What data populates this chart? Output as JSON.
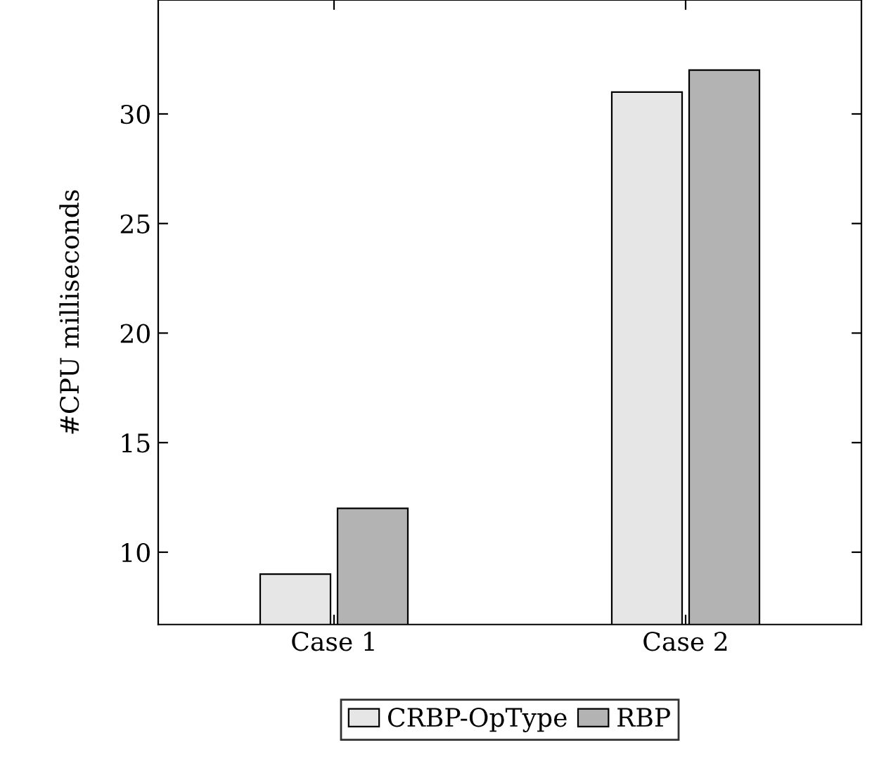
{
  "chart_data": {
    "type": "bar",
    "ylabel": "#CPU milliseconds",
    "categories": [
      "Case 1",
      "Case 2"
    ],
    "series": [
      {
        "name": "CRBP-OpType",
        "color": "#e6e6e6",
        "values": [
          9,
          31
        ]
      },
      {
        "name": "RBP",
        "color": "#b3b3b3",
        "values": [
          12,
          32
        ]
      }
    ],
    "ylim": [
      6.7,
      35.2
    ],
    "yticks": [
      10,
      15,
      20,
      25,
      30
    ],
    "grid": false,
    "legend": "bottom"
  }
}
